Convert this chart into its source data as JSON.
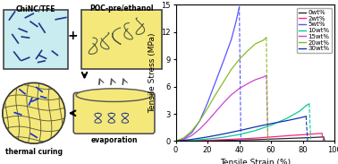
{
  "xlabel": "Tensile Strain (%)",
  "ylabel": "Tensile Stress (MPa)",
  "xlim": [
    0,
    100
  ],
  "ylim": [
    0,
    15
  ],
  "yticks": [
    0,
    3,
    6,
    9,
    12,
    15
  ],
  "xticks": [
    0,
    20,
    40,
    60,
    80,
    100
  ],
  "series": [
    {
      "label": "0wt%",
      "color": "#2a2a2a",
      "ctrl_pts": [
        [
          0,
          0
        ],
        [
          15,
          0.04
        ],
        [
          30,
          0.09
        ],
        [
          50,
          0.15
        ],
        [
          70,
          0.28
        ],
        [
          85,
          0.38
        ],
        [
          93,
          0.45
        ],
        [
          94,
          0.0
        ]
      ]
    },
    {
      "label": "2wt%",
      "color": "#ff2288",
      "ctrl_pts": [
        [
          0,
          0
        ],
        [
          15,
          0.05
        ],
        [
          30,
          0.15
        ],
        [
          50,
          0.32
        ],
        [
          70,
          0.58
        ],
        [
          85,
          0.76
        ],
        [
          92,
          0.85
        ],
        [
          93,
          0.0
        ]
      ]
    },
    {
      "label": "5wt%",
      "color": "#5555ff",
      "ctrl_pts": [
        [
          0,
          0
        ],
        [
          5,
          0.25
        ],
        [
          10,
          0.9
        ],
        [
          15,
          2.2
        ],
        [
          20,
          4.2
        ],
        [
          25,
          6.5
        ],
        [
          30,
          8.8
        ],
        [
          35,
          11.2
        ],
        [
          38,
          13.2
        ],
        [
          40,
          14.8
        ],
        [
          41,
          0.0
        ]
      ]
    },
    {
      "label": "10wt%",
      "color": "#00cc99",
      "ctrl_pts": [
        [
          0,
          0
        ],
        [
          10,
          0.08
        ],
        [
          20,
          0.22
        ],
        [
          30,
          0.42
        ],
        [
          40,
          0.72
        ],
        [
          50,
          1.15
        ],
        [
          60,
          1.75
        ],
        [
          70,
          2.5
        ],
        [
          78,
          3.3
        ],
        [
          82,
          3.9
        ],
        [
          84,
          4.1
        ],
        [
          85,
          0.0
        ]
      ]
    },
    {
      "label": "15wt%",
      "color": "#cc44cc",
      "ctrl_pts": [
        [
          0,
          0
        ],
        [
          5,
          0.18
        ],
        [
          10,
          0.6
        ],
        [
          15,
          1.3
        ],
        [
          20,
          2.2
        ],
        [
          25,
          3.2
        ],
        [
          30,
          4.2
        ],
        [
          35,
          5.1
        ],
        [
          40,
          5.8
        ],
        [
          45,
          6.3
        ],
        [
          50,
          6.75
        ],
        [
          55,
          7.05
        ],
        [
          57,
          7.2
        ],
        [
          58,
          0.0
        ]
      ]
    },
    {
      "label": "20wt%",
      "color": "#88bb22",
      "ctrl_pts": [
        [
          0,
          0
        ],
        [
          5,
          0.35
        ],
        [
          10,
          1.1
        ],
        [
          15,
          2.2
        ],
        [
          20,
          3.6
        ],
        [
          25,
          5.1
        ],
        [
          30,
          6.5
        ],
        [
          35,
          7.9
        ],
        [
          40,
          9.0
        ],
        [
          45,
          9.9
        ],
        [
          50,
          10.7
        ],
        [
          55,
          11.1
        ],
        [
          57,
          11.4
        ],
        [
          58,
          0.0
        ]
      ]
    },
    {
      "label": "30wt%",
      "color": "#1133aa",
      "ctrl_pts": [
        [
          0,
          0
        ],
        [
          10,
          0.18
        ],
        [
          20,
          0.45
        ],
        [
          30,
          0.78
        ],
        [
          40,
          1.15
        ],
        [
          50,
          1.55
        ],
        [
          60,
          1.92
        ],
        [
          70,
          2.25
        ],
        [
          78,
          2.55
        ],
        [
          82,
          2.72
        ],
        [
          83,
          0.0
        ]
      ]
    }
  ],
  "legend_order": [
    "0wt%",
    "2wt%",
    "5wt%",
    "10wt%",
    "15wt%",
    "20wt%",
    "30wt%"
  ],
  "left_panel": {
    "chinc_tfe_label": "ChiNC/TFE",
    "poc_label": "POC-pre/ethanol",
    "thermal_label": "thermal curing",
    "evap_label": "evaporation",
    "chinc_bg": "#c8ecf0",
    "poc_bg": "#f5e87a",
    "sphere_bg": "#f5e87a",
    "dish_bg": "#f5e87a"
  },
  "figsize": [
    3.78,
    1.83
  ],
  "dpi": 100
}
